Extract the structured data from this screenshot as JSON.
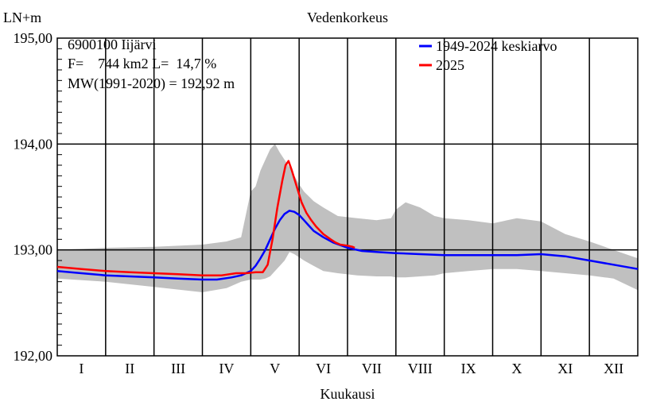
{
  "chart_data": {
    "type": "line",
    "title": "Vedenkorkeus",
    "ylabel": "LN+m",
    "xlabel": "Kuukausi",
    "ylim": [
      192.0,
      195.0
    ],
    "xlim": [
      0,
      12
    ],
    "y_ticks": [
      "192,00",
      "193,00",
      "194,00",
      "195,00"
    ],
    "y_tick_values": [
      192.0,
      193.0,
      194.0,
      195.0
    ],
    "months": [
      "I",
      "II",
      "III",
      "IV",
      "V",
      "VI",
      "VII",
      "VIII",
      "IX",
      "X",
      "XI",
      "XII"
    ],
    "grid": true,
    "legend_position": "top-right",
    "station_info": {
      "line1": "6900100 Iijärvi",
      "line2": "F=    744 km2 L=  14,7 %",
      "line3": "MW(1991-2020) = 192,92 m"
    },
    "colors": {
      "mean": "#0000ff",
      "current": "#ff0000",
      "band": "#c0c0c0"
    },
    "band": {
      "x": [
        0.0,
        1.0,
        2.0,
        3.0,
        3.5,
        3.8,
        4.0,
        4.1,
        4.2,
        4.3,
        4.4,
        4.5,
        4.6,
        4.7,
        4.8,
        4.9,
        5.0,
        5.1,
        5.3,
        5.5,
        5.8,
        6.2,
        6.6,
        6.9,
        7.0,
        7.2,
        7.5,
        7.8,
        8.0,
        8.5,
        9.0,
        9.5,
        10.0,
        10.5,
        11.0,
        11.5,
        12.0
      ],
      "low": [
        192.73,
        192.7,
        192.65,
        192.6,
        192.64,
        192.7,
        192.72,
        192.72,
        192.72,
        192.73,
        192.75,
        192.8,
        192.85,
        192.9,
        192.98,
        192.96,
        192.93,
        192.9,
        192.85,
        192.8,
        192.78,
        192.76,
        192.75,
        192.75,
        192.74,
        192.74,
        192.75,
        192.76,
        192.78,
        192.8,
        192.82,
        192.82,
        192.8,
        192.78,
        192.76,
        192.73,
        192.62
      ],
      "high": [
        193.0,
        193.02,
        193.03,
        193.05,
        193.08,
        193.12,
        193.55,
        193.6,
        193.75,
        193.85,
        193.95,
        194.0,
        193.92,
        193.85,
        193.78,
        193.7,
        193.62,
        193.55,
        193.46,
        193.4,
        193.32,
        193.3,
        193.28,
        193.3,
        193.38,
        193.45,
        193.4,
        193.32,
        193.3,
        193.28,
        193.25,
        193.3,
        193.27,
        193.15,
        193.08,
        193.0,
        192.92
      ]
    },
    "series": [
      {
        "name": "1949-2024 keskiarvo",
        "x": [
          0.0,
          0.5,
          1.0,
          1.5,
          2.0,
          2.5,
          3.0,
          3.3,
          3.6,
          3.8,
          4.0,
          4.1,
          4.2,
          4.3,
          4.4,
          4.5,
          4.6,
          4.7,
          4.8,
          4.9,
          5.0,
          5.1,
          5.2,
          5.3,
          5.5,
          5.7,
          6.0,
          6.3,
          6.6,
          7.0,
          7.5,
          8.0,
          8.5,
          9.0,
          9.5,
          10.0,
          10.5,
          11.0,
          11.5,
          12.0
        ],
        "y": [
          192.8,
          192.78,
          192.76,
          192.75,
          192.74,
          192.73,
          192.72,
          192.72,
          192.74,
          192.76,
          192.8,
          192.85,
          192.92,
          193.0,
          193.1,
          193.2,
          193.28,
          193.34,
          193.37,
          193.36,
          193.33,
          193.28,
          193.23,
          193.18,
          193.12,
          193.07,
          193.02,
          192.99,
          192.98,
          192.97,
          192.96,
          192.95,
          192.95,
          192.95,
          192.95,
          192.96,
          192.94,
          192.9,
          192.86,
          192.82
        ]
      },
      {
        "name": "2025",
        "x": [
          0.0,
          0.5,
          1.0,
          1.5,
          2.0,
          2.5,
          3.0,
          3.4,
          3.7,
          3.9,
          4.1,
          4.25,
          4.35,
          4.45,
          4.55,
          4.65,
          4.72,
          4.78,
          4.85,
          4.95,
          5.05,
          5.15,
          5.25,
          5.35,
          5.5,
          5.65,
          5.75,
          5.85,
          6.0,
          6.1,
          6.15
        ],
        "y": [
          192.84,
          192.82,
          192.8,
          192.79,
          192.78,
          192.77,
          192.76,
          192.76,
          192.78,
          192.78,
          192.79,
          192.79,
          192.86,
          193.1,
          193.4,
          193.65,
          193.8,
          193.84,
          193.75,
          193.6,
          193.45,
          193.35,
          193.28,
          193.22,
          193.15,
          193.1,
          193.07,
          193.05,
          193.04,
          193.03,
          193.02
        ]
      }
    ]
  }
}
